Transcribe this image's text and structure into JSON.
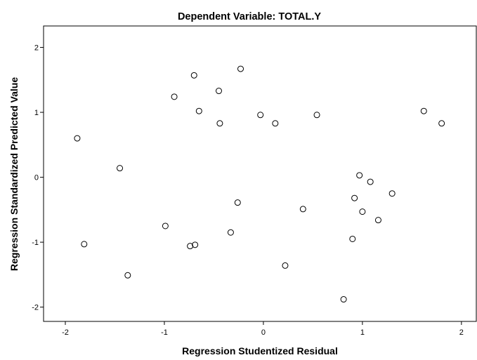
{
  "chart_data": {
    "type": "scatter",
    "title": "Dependent Variable: TOTAL.Y",
    "xlabel": "Regression Studentized Residual",
    "ylabel": "Regression Standardized Predicted Value",
    "xlim": [
      -2.22,
      2.15
    ],
    "ylim": [
      -2.22,
      2.33
    ],
    "x_ticks": [
      -2,
      -1,
      0,
      1,
      2
    ],
    "y_ticks": [
      -2,
      -1,
      0,
      1,
      2
    ],
    "x_tick_labels": [
      "-2",
      "-1",
      "0",
      "1",
      "2"
    ],
    "y_tick_labels": [
      "-2",
      "-1",
      "0",
      "1",
      "2"
    ],
    "grid": false,
    "legend": "none",
    "marker": "open-circle",
    "colors": {
      "background": "#ffffff",
      "plot_area": "#ffffff",
      "marker": "#000000",
      "axis": "#000000"
    },
    "points": [
      {
        "x": -1.88,
        "y": 0.6
      },
      {
        "x": -1.81,
        "y": -1.03
      },
      {
        "x": -1.45,
        "y": 0.14
      },
      {
        "x": -1.37,
        "y": -1.51
      },
      {
        "x": -0.99,
        "y": -0.75
      },
      {
        "x": -0.9,
        "y": 1.24
      },
      {
        "x": -0.74,
        "y": -1.06
      },
      {
        "x": -0.7,
        "y": 1.57
      },
      {
        "x": -0.69,
        "y": -1.04
      },
      {
        "x": -0.65,
        "y": 1.02
      },
      {
        "x": -0.45,
        "y": 1.33
      },
      {
        "x": -0.44,
        "y": 0.83
      },
      {
        "x": -0.33,
        "y": -0.85
      },
      {
        "x": -0.26,
        "y": -0.39
      },
      {
        "x": -0.23,
        "y": 1.67
      },
      {
        "x": -0.03,
        "y": 0.96
      },
      {
        "x": 0.12,
        "y": 0.83
      },
      {
        "x": 0.22,
        "y": -1.36
      },
      {
        "x": 0.4,
        "y": -0.49
      },
      {
        "x": 0.54,
        "y": 0.96
      },
      {
        "x": 0.81,
        "y": -1.88
      },
      {
        "x": 0.9,
        "y": -0.95
      },
      {
        "x": 0.92,
        "y": -0.32
      },
      {
        "x": 0.97,
        "y": 0.03
      },
      {
        "x": 1.0,
        "y": -0.53
      },
      {
        "x": 1.08,
        "y": -0.07
      },
      {
        "x": 1.16,
        "y": -0.66
      },
      {
        "x": 1.3,
        "y": -0.25
      },
      {
        "x": 1.62,
        "y": 1.02
      },
      {
        "x": 1.8,
        "y": 0.83
      }
    ]
  }
}
